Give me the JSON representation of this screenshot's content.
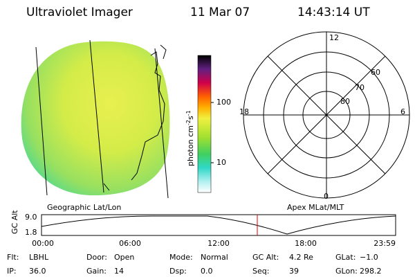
{
  "header": {
    "title": "Ultraviolet Imager",
    "date": "11 Mar 07",
    "time": "14:43:14 UT"
  },
  "image": {
    "left_label": "Geographic Lat/Lon",
    "right_label": "Apex MLat/MLT"
  },
  "colorbar": {
    "label": "photon cm",
    "exp1": "-2",
    "unit2": "s",
    "exp2": "-1",
    "ticks": [
      "100",
      "10"
    ]
  },
  "polar": {
    "top": "12",
    "left": "18",
    "right": "6",
    "bottom": "0",
    "rings": [
      "60",
      "70",
      "80"
    ]
  },
  "altitude": {
    "ylabel": "GC Alt",
    "yticks": [
      "9.0",
      "1.8"
    ],
    "xticks": [
      "00:00",
      "06:00",
      "12:00",
      "18:00",
      "23:59"
    ]
  },
  "info": [
    [
      {
        "label": "Flt:",
        "value": "LBHL"
      },
      {
        "label": "Door:",
        "value": "Open"
      },
      {
        "label": "Mode:",
        "value": "Normal"
      },
      {
        "label": "GC Alt:",
        "value": "4.2 Re"
      },
      {
        "label": "GLat:",
        "value": "−1.0"
      }
    ],
    [
      {
        "label": "IP:",
        "value": "36.0"
      },
      {
        "label": "Gain:",
        "value": "14"
      },
      {
        "label": "Dsp:",
        "value": "0.0"
      },
      {
        "label": "Seq:",
        "value": "39"
      },
      {
        "label": "GLon:",
        "value": "298.2"
      }
    ]
  ]
}
